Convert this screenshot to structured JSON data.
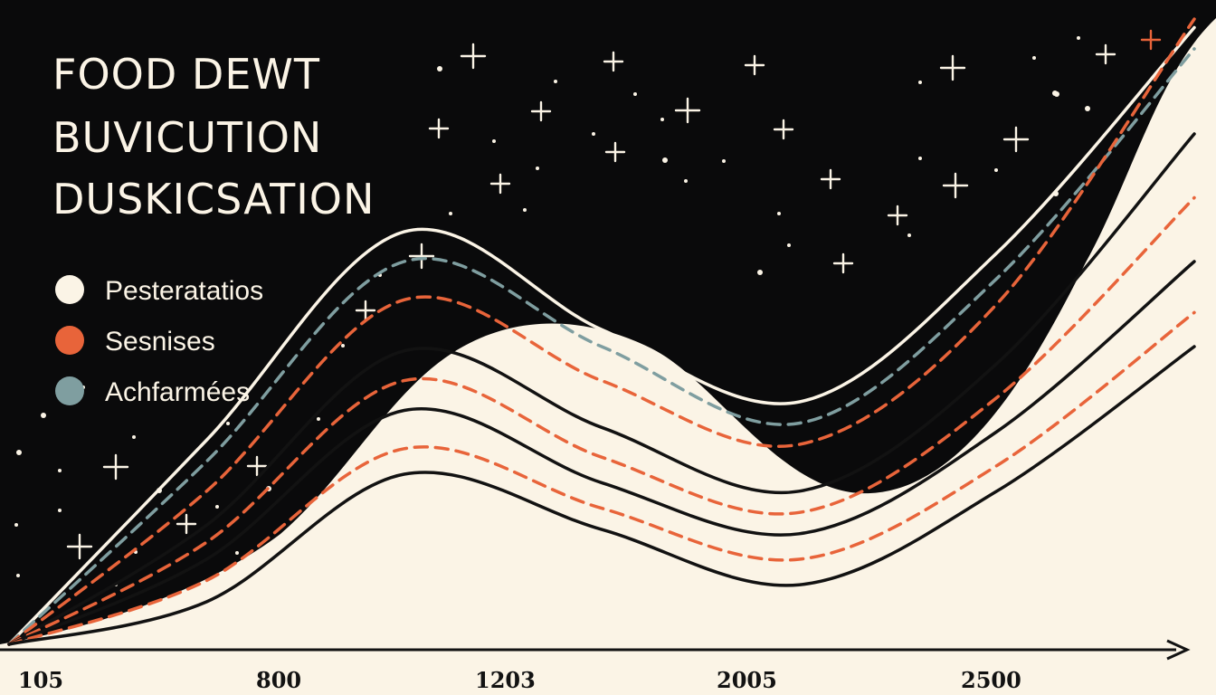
{
  "colors": {
    "night": "#0a0a0b",
    "cream": "#fbf4e6",
    "ink": "#121212",
    "orange": "#e8643a",
    "slate": "#7f9ea0"
  },
  "chart_data": {
    "type": "line",
    "title_lines": [
      "FOOD DEWT",
      "BUVICUTION",
      "DUSKICSATION"
    ],
    "xlabel": "",
    "ylabel": "",
    "x_ticks": [
      "105",
      "800",
      "1203",
      "2005",
      "2500"
    ],
    "grid": false,
    "legend_position": "top-left",
    "legend": [
      {
        "label": "Pesteratatios",
        "color": "#fbf4e6"
      },
      {
        "label": "Sesnises",
        "color": "#e8643a"
      },
      {
        "label": "Achfarmées",
        "color": "#7f9ea0"
      }
    ],
    "x": [
      0,
      1,
      2,
      3,
      4,
      5,
      6
    ],
    "series": [
      {
        "values": [
          0.0,
          0.48,
          0.97,
          0.74,
          0.57,
          0.92,
          1.45
        ],
        "color": "#fbf4e6",
        "style": "solid"
      },
      {
        "values": [
          0.0,
          0.43,
          0.9,
          0.7,
          0.52,
          0.86,
          1.4
        ],
        "color": "#7f9ea0",
        "style": "dashed"
      },
      {
        "values": [
          0.0,
          0.36,
          0.81,
          0.62,
          0.47,
          0.8,
          1.47
        ],
        "color": "#e8643a",
        "style": "dashed"
      },
      {
        "values": [
          0.0,
          0.28,
          0.69,
          0.51,
          0.36,
          0.66,
          1.2
        ],
        "color": "#121212",
        "style": "solid"
      },
      {
        "values": [
          0.0,
          0.24,
          0.62,
          0.44,
          0.31,
          0.58,
          1.05
        ],
        "color": "#e8643a",
        "style": "dashed"
      },
      {
        "values": [
          0.0,
          0.2,
          0.55,
          0.38,
          0.26,
          0.5,
          0.9
        ],
        "color": "#121212",
        "style": "solid"
      },
      {
        "values": [
          0.0,
          0.15,
          0.46,
          0.32,
          0.2,
          0.42,
          0.78
        ],
        "color": "#e8643a",
        "style": "dashed"
      },
      {
        "values": [
          0.0,
          0.1,
          0.4,
          0.27,
          0.14,
          0.36,
          0.7
        ],
        "color": "#121212",
        "style": "solid"
      }
    ]
  }
}
